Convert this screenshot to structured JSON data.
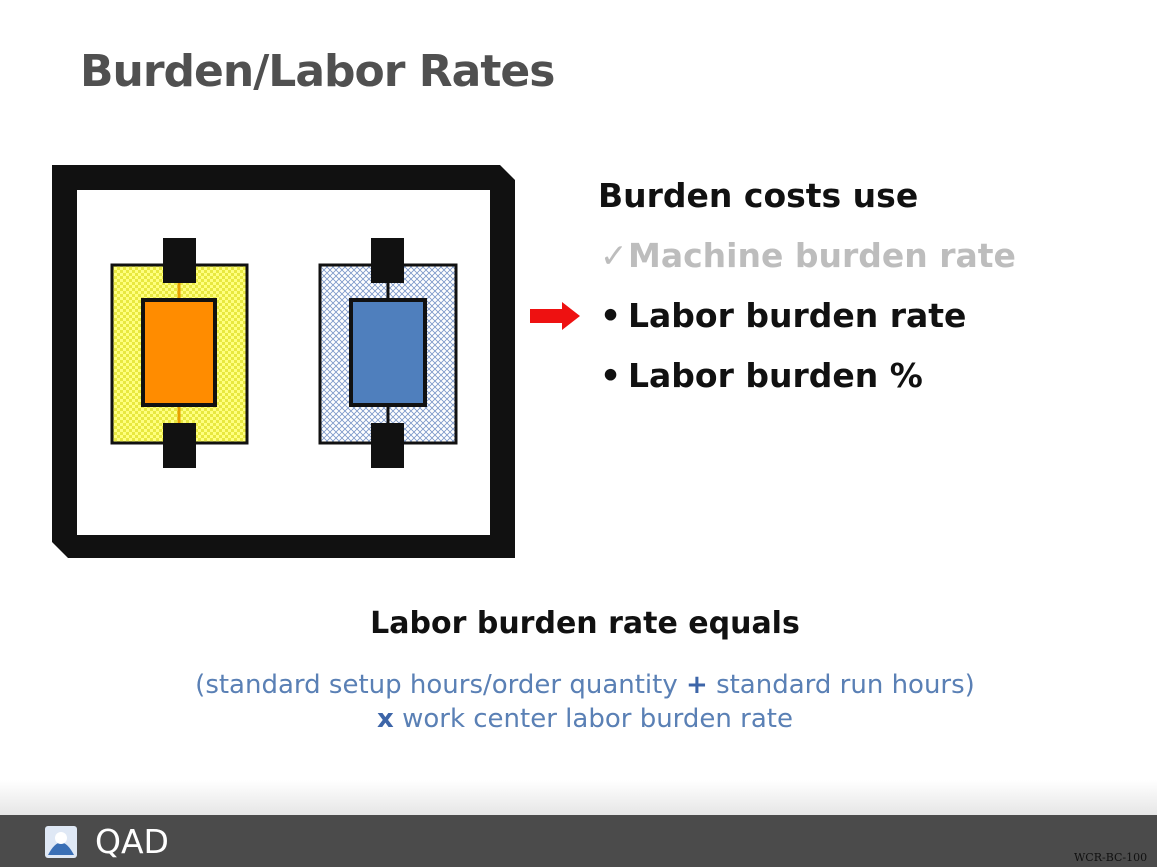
{
  "header": {
    "title": "Burden/Labor Rates"
  },
  "list": {
    "heading": "Burden costs use",
    "items": [
      {
        "marker": "✓",
        "text": "Machine burden rate"
      },
      {
        "marker": "•",
        "text": "Labor burden rate"
      },
      {
        "marker": "•",
        "text": "Labor burden %"
      }
    ]
  },
  "formula": {
    "heading": "Labor burden rate equals",
    "line1": [
      "(standard setup hours/order quantity",
      "+",
      "standard run hours)"
    ],
    "line2": [
      "x",
      "work center labor burden rate"
    ]
  },
  "footer": {
    "logo": "QAD",
    "code": "WCR-BC-100"
  }
}
